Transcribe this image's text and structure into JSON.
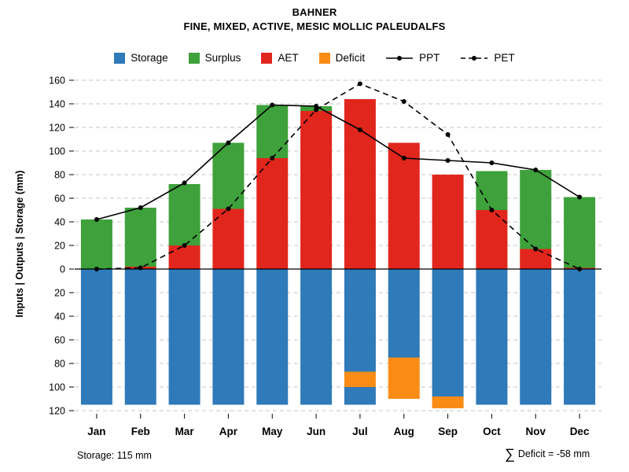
{
  "header": {
    "title": "BAHNER",
    "subtitle": "FINE, MIXED, ACTIVE, MESIC MOLLIC PALEUDALFS"
  },
  "legend": {
    "items": [
      {
        "label": "Storage",
        "color": "#2f7ab9"
      },
      {
        "label": "Surplus",
        "color": "#3ea13b"
      },
      {
        "label": "AET",
        "color": "#e1261d"
      },
      {
        "label": "Deficit",
        "color": "#fa8c16"
      },
      {
        "label": "PPT",
        "style": "solid-black-line-with-dots"
      },
      {
        "label": "PET",
        "style": "dashed-black-line-with-dots"
      }
    ]
  },
  "ylabel": "Inputs | Outputs | Storage   (mm)",
  "footer": {
    "storage_note": "Storage: 115 mm",
    "deficit_sigma": "∑",
    "deficit_note": "Deficit = -58 mm"
  },
  "chart_data": {
    "type": "bar",
    "subtype": "monthly water balance: stacked bars up (AET + Surplus), bars down (Storage with Deficit), overlaid lines (PPT solid, PET dashed)",
    "units": "mm",
    "categories": [
      "Jan",
      "Feb",
      "Mar",
      "Apr",
      "May",
      "Jun",
      "Jul",
      "Aug",
      "Sep",
      "Oct",
      "Nov",
      "Dec"
    ],
    "axis": {
      "y_up_max": 160,
      "y_down_max": 120,
      "tick_step": 20,
      "grid": "dashed-horizontal"
    },
    "series": {
      "aet": {
        "name": "AET",
        "color": "#e1261d",
        "values": [
          0,
          2,
          20,
          51,
          94,
          134,
          144,
          107,
          80,
          50,
          17,
          1
        ]
      },
      "surplus": {
        "name": "Surplus",
        "color": "#3ea13b",
        "values": [
          42,
          50,
          52,
          56,
          45,
          4,
          0,
          0,
          0,
          33,
          67,
          60
        ]
      },
      "ppt": {
        "name": "PPT",
        "line": "solid",
        "marker": "black-dot",
        "values": [
          42,
          52,
          73,
          107,
          139,
          138,
          118,
          94,
          92,
          90,
          84,
          61
        ]
      },
      "pet": {
        "name": "PET",
        "line": "dashed",
        "marker": "black-dot",
        "values": [
          0,
          1,
          20,
          51,
          94,
          135,
          157,
          142,
          114,
          50,
          17,
          0
        ]
      },
      "storage": {
        "name": "Storage",
        "color": "#2f7ab9",
        "segments": [
          [
            [
              0,
              115
            ]
          ],
          [
            [
              0,
              115
            ]
          ],
          [
            [
              0,
              115
            ]
          ],
          [
            [
              0,
              115
            ]
          ],
          [
            [
              0,
              115
            ]
          ],
          [
            [
              0,
              115
            ]
          ],
          [
            [
              0,
              87
            ],
            [
              100,
              115
            ]
          ],
          [
            [
              0,
              75
            ]
          ],
          [
            [
              0,
              108
            ]
          ],
          [
            [
              0,
              115
            ]
          ],
          [
            [
              0,
              115
            ]
          ],
          [
            [
              0,
              115
            ]
          ]
        ]
      },
      "deficit": {
        "name": "Deficit",
        "color": "#fa8c16",
        "segments": [
          [],
          [],
          [],
          [],
          [],
          [],
          [
            [
              87,
              100
            ]
          ],
          [
            [
              75,
              110
            ]
          ],
          [
            [
              108,
              118
            ]
          ],
          [],
          [],
          []
        ]
      }
    }
  }
}
